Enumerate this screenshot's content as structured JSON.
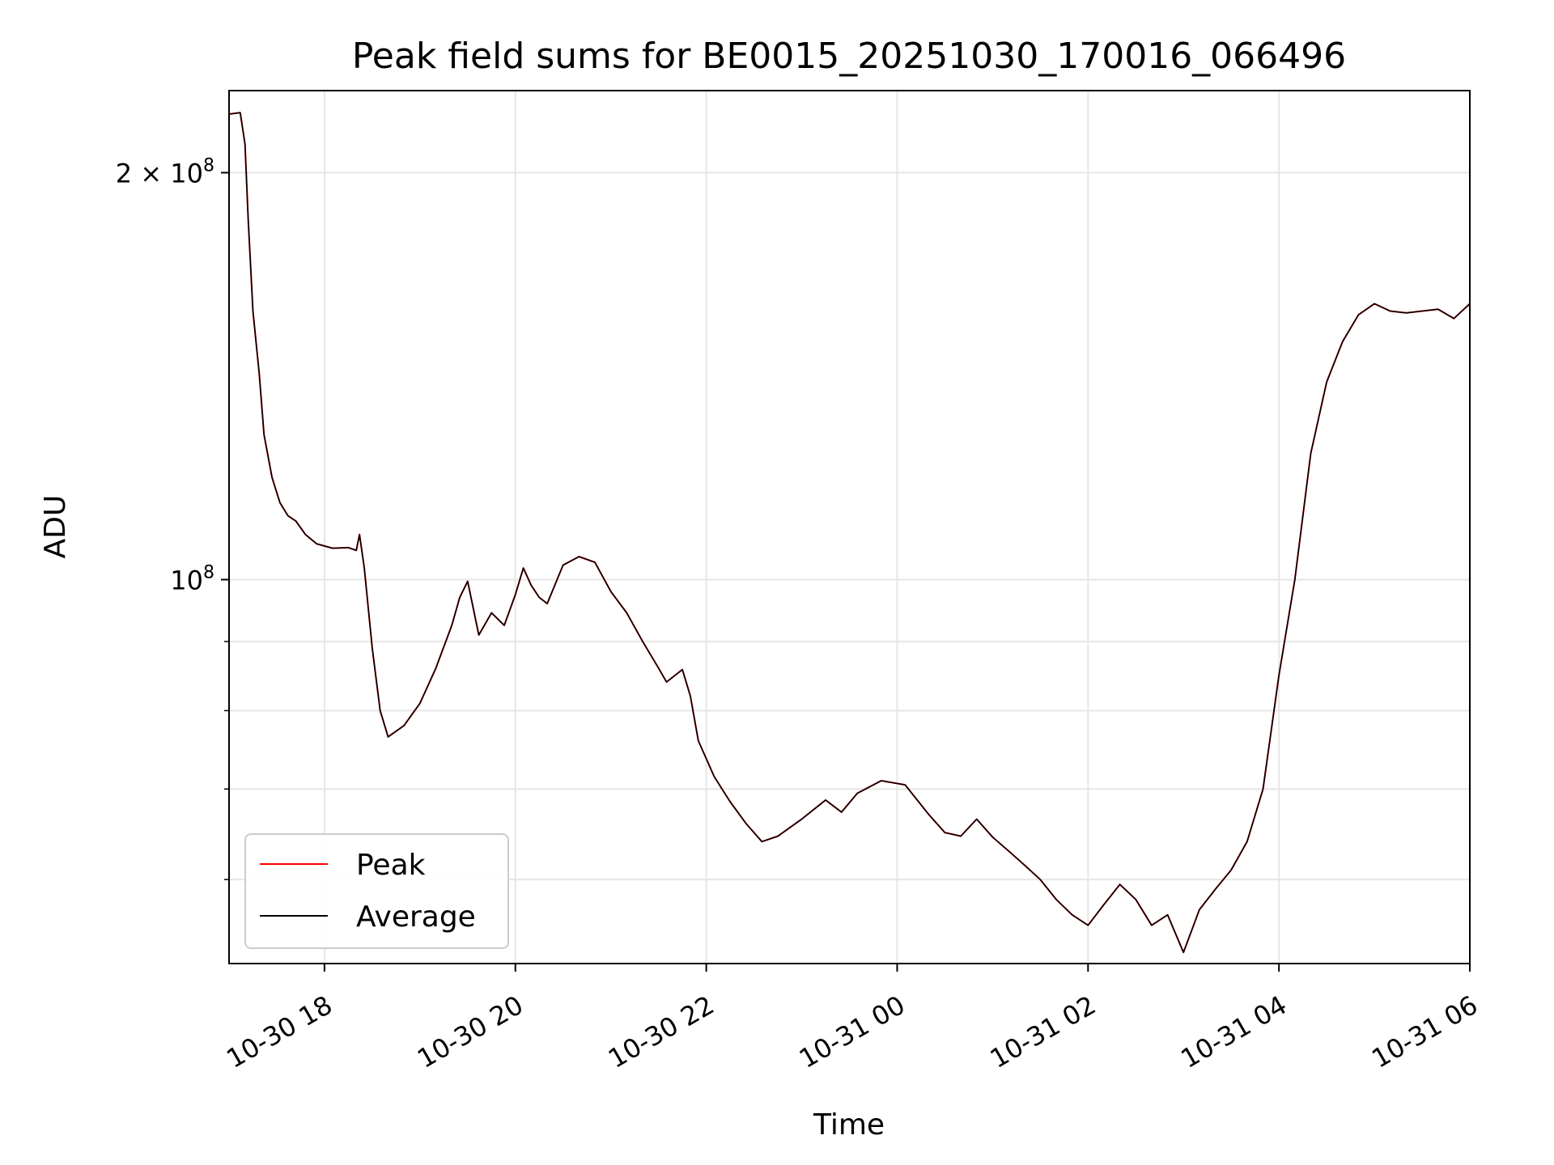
{
  "chart_data": {
    "type": "line",
    "title": "Peak field sums for BE0015_20251030_170016_066496",
    "xlabel": "Time",
    "ylabel": "ADU",
    "y_scale": "log",
    "grid": true,
    "legend_position": "lower-left",
    "xlim": [
      "2025-10-30T17:00",
      "2025-10-31T06:00"
    ],
    "ylim": [
      52000000,
      230000000
    ],
    "x_ticks": [
      {
        "t": "2025-10-30T18:00",
        "label": "10-30 18"
      },
      {
        "t": "2025-10-30T20:00",
        "label": "10-30 20"
      },
      {
        "t": "2025-10-30T22:00",
        "label": "10-30 22"
      },
      {
        "t": "2025-10-31T00:00",
        "label": "10-31 00"
      },
      {
        "t": "2025-10-31T02:00",
        "label": "10-31 02"
      },
      {
        "t": "2025-10-31T04:00",
        "label": "10-31 04"
      },
      {
        "t": "2025-10-31T06:00",
        "label": "10-31 06"
      }
    ],
    "y_major_ticks": [
      {
        "value": 100000000,
        "base": "10",
        "exp": "8"
      },
      {
        "value": 200000000,
        "base": "2 × 10",
        "exp": "8"
      }
    ],
    "y_minor_ticks": [
      60000000,
      70000000,
      80000000,
      90000000
    ],
    "series": [
      {
        "name": "Average",
        "color": "#000000",
        "points": [
          [
            "2025-10-30T17:00",
            221000000
          ],
          [
            "2025-10-30T17:07",
            221500000
          ],
          [
            "2025-10-30T17:10",
            210000000
          ],
          [
            "2025-10-30T17:12",
            185000000
          ],
          [
            "2025-10-30T17:15",
            158000000
          ],
          [
            "2025-10-30T17:19",
            142000000
          ],
          [
            "2025-10-30T17:22",
            128000000
          ],
          [
            "2025-10-30T17:27",
            119000000
          ],
          [
            "2025-10-30T17:32",
            114000000
          ],
          [
            "2025-10-30T17:37",
            111500000
          ],
          [
            "2025-10-30T17:42",
            110500000
          ],
          [
            "2025-10-30T17:48",
            108000000
          ],
          [
            "2025-10-30T17:55",
            106300000
          ],
          [
            "2025-10-30T18:05",
            105500000
          ],
          [
            "2025-10-30T18:15",
            105600000
          ],
          [
            "2025-10-30T18:20",
            105100000
          ],
          [
            "2025-10-30T18:22",
            108000000
          ],
          [
            "2025-10-30T18:25",
            102000000
          ],
          [
            "2025-10-30T18:30",
            89000000
          ],
          [
            "2025-10-30T18:35",
            80000000
          ],
          [
            "2025-10-30T18:40",
            76500000
          ],
          [
            "2025-10-30T18:50",
            78000000
          ],
          [
            "2025-10-30T19:00",
            81000000
          ],
          [
            "2025-10-30T19:10",
            86000000
          ],
          [
            "2025-10-30T19:20",
            92500000
          ],
          [
            "2025-10-30T19:25",
            97000000
          ],
          [
            "2025-10-30T19:30",
            99700000
          ],
          [
            "2025-10-30T19:37",
            91000000
          ],
          [
            "2025-10-30T19:45",
            94500000
          ],
          [
            "2025-10-30T19:53",
            92500000
          ],
          [
            "2025-10-30T20:00",
            97500000
          ],
          [
            "2025-10-30T20:05",
            102000000
          ],
          [
            "2025-10-30T20:10",
            99000000
          ],
          [
            "2025-10-30T20:15",
            97000000
          ],
          [
            "2025-10-30T20:20",
            96000000
          ],
          [
            "2025-10-30T20:30",
            102500000
          ],
          [
            "2025-10-30T20:40",
            104000000
          ],
          [
            "2025-10-30T20:50",
            103000000
          ],
          [
            "2025-10-30T21:00",
            98000000
          ],
          [
            "2025-10-30T21:10",
            94500000
          ],
          [
            "2025-10-30T21:20",
            90000000
          ],
          [
            "2025-10-30T21:30",
            86000000
          ],
          [
            "2025-10-30T21:35",
            84000000
          ],
          [
            "2025-10-30T21:45",
            85800000
          ],
          [
            "2025-10-30T21:50",
            82000000
          ],
          [
            "2025-10-30T21:55",
            76000000
          ],
          [
            "2025-10-30T22:05",
            71500000
          ],
          [
            "2025-10-30T22:15",
            68500000
          ],
          [
            "2025-10-30T22:25",
            66000000
          ],
          [
            "2025-10-30T22:35",
            64000000
          ],
          [
            "2025-10-30T22:45",
            64600000
          ],
          [
            "2025-10-30T23:00",
            66500000
          ],
          [
            "2025-10-30T23:15",
            68700000
          ],
          [
            "2025-10-30T23:25",
            67300000
          ],
          [
            "2025-10-30T23:35",
            69500000
          ],
          [
            "2025-10-30T23:50",
            71000000
          ],
          [
            "2025-10-31T00:05",
            70500000
          ],
          [
            "2025-10-31T00:20",
            67000000
          ],
          [
            "2025-10-31T00:30",
            65000000
          ],
          [
            "2025-10-31T00:40",
            64600000
          ],
          [
            "2025-10-31T00:50",
            66500000
          ],
          [
            "2025-10-31T01:00",
            64500000
          ],
          [
            "2025-10-31T01:10",
            63000000
          ],
          [
            "2025-10-31T01:20",
            61500000
          ],
          [
            "2025-10-31T01:30",
            60000000
          ],
          [
            "2025-10-31T01:40",
            58000000
          ],
          [
            "2025-10-31T01:50",
            56500000
          ],
          [
            "2025-10-31T02:00",
            55500000
          ],
          [
            "2025-10-31T02:10",
            57500000
          ],
          [
            "2025-10-31T02:20",
            59500000
          ],
          [
            "2025-10-31T02:30",
            58000000
          ],
          [
            "2025-10-31T02:40",
            55500000
          ],
          [
            "2025-10-31T02:50",
            56500000
          ],
          [
            "2025-10-31T03:00",
            53000000
          ],
          [
            "2025-10-31T03:10",
            57000000
          ],
          [
            "2025-10-31T03:20",
            59000000
          ],
          [
            "2025-10-31T03:30",
            61000000
          ],
          [
            "2025-10-31T03:40",
            64000000
          ],
          [
            "2025-10-31T03:50",
            70000000
          ],
          [
            "2025-10-31T04:00",
            85000000
          ],
          [
            "2025-10-31T04:10",
            100000000
          ],
          [
            "2025-10-31T04:20",
            124000000
          ],
          [
            "2025-10-31T04:30",
            140000000
          ],
          [
            "2025-10-31T04:40",
            150000000
          ],
          [
            "2025-10-31T04:50",
            157000000
          ],
          [
            "2025-10-31T05:00",
            160000000
          ],
          [
            "2025-10-31T05:10",
            158000000
          ],
          [
            "2025-10-31T05:20",
            157500000
          ],
          [
            "2025-10-31T05:30",
            158000000
          ],
          [
            "2025-10-31T05:40",
            158500000
          ],
          [
            "2025-10-31T05:50",
            156000000
          ],
          [
            "2025-10-31T06:00",
            160000000
          ]
        ]
      },
      {
        "name": "Peak",
        "color": "#ff0000",
        "points": [
          [
            "2025-10-30T17:00",
            221000000
          ],
          [
            "2025-10-30T17:07",
            221500000
          ],
          [
            "2025-10-30T17:10",
            210000000
          ],
          [
            "2025-10-30T17:12",
            185000000
          ],
          [
            "2025-10-30T17:15",
            158000000
          ],
          [
            "2025-10-30T17:19",
            142000000
          ],
          [
            "2025-10-30T17:22",
            128000000
          ],
          [
            "2025-10-30T17:27",
            119000000
          ],
          [
            "2025-10-30T17:32",
            114000000
          ],
          [
            "2025-10-30T17:37",
            111500000
          ],
          [
            "2025-10-30T17:42",
            110500000
          ],
          [
            "2025-10-30T17:48",
            108000000
          ],
          [
            "2025-10-30T17:55",
            106300000
          ],
          [
            "2025-10-30T18:05",
            105500000
          ],
          [
            "2025-10-30T18:15",
            105600000
          ],
          [
            "2025-10-30T18:20",
            105100000
          ],
          [
            "2025-10-30T18:22",
            108000000
          ],
          [
            "2025-10-30T18:25",
            102000000
          ],
          [
            "2025-10-30T18:30",
            89000000
          ],
          [
            "2025-10-30T18:35",
            80000000
          ],
          [
            "2025-10-30T18:40",
            76500000
          ],
          [
            "2025-10-30T18:50",
            78000000
          ],
          [
            "2025-10-30T19:00",
            81000000
          ],
          [
            "2025-10-30T19:10",
            86000000
          ],
          [
            "2025-10-30T19:20",
            92500000
          ],
          [
            "2025-10-30T19:25",
            97000000
          ],
          [
            "2025-10-30T19:30",
            99700000
          ],
          [
            "2025-10-30T19:37",
            91000000
          ],
          [
            "2025-10-30T19:45",
            94500000
          ],
          [
            "2025-10-30T19:53",
            92500000
          ],
          [
            "2025-10-30T20:00",
            97500000
          ],
          [
            "2025-10-30T20:05",
            102000000
          ],
          [
            "2025-10-30T20:10",
            99000000
          ],
          [
            "2025-10-30T20:15",
            97000000
          ],
          [
            "2025-10-30T20:20",
            96000000
          ],
          [
            "2025-10-30T20:30",
            102500000
          ],
          [
            "2025-10-30T20:40",
            104000000
          ],
          [
            "2025-10-30T20:50",
            103000000
          ],
          [
            "2025-10-30T21:00",
            98000000
          ],
          [
            "2025-10-30T21:10",
            94500000
          ],
          [
            "2025-10-30T21:20",
            90000000
          ],
          [
            "2025-10-30T21:30",
            86000000
          ],
          [
            "2025-10-30T21:35",
            84000000
          ],
          [
            "2025-10-30T21:45",
            85800000
          ],
          [
            "2025-10-30T21:50",
            82000000
          ],
          [
            "2025-10-30T21:55",
            76000000
          ],
          [
            "2025-10-30T22:05",
            71500000
          ],
          [
            "2025-10-30T22:15",
            68500000
          ],
          [
            "2025-10-30T22:25",
            66000000
          ],
          [
            "2025-10-30T22:35",
            64000000
          ],
          [
            "2025-10-30T22:45",
            64600000
          ],
          [
            "2025-10-30T23:00",
            66500000
          ],
          [
            "2025-10-30T23:15",
            68700000
          ],
          [
            "2025-10-30T23:25",
            67300000
          ],
          [
            "2025-10-30T23:35",
            69500000
          ],
          [
            "2025-10-30T23:50",
            71000000
          ],
          [
            "2025-10-31T00:05",
            70500000
          ],
          [
            "2025-10-31T00:20",
            67000000
          ],
          [
            "2025-10-31T00:30",
            65000000
          ],
          [
            "2025-10-31T00:40",
            64600000
          ],
          [
            "2025-10-31T00:50",
            66500000
          ],
          [
            "2025-10-31T01:00",
            64500000
          ],
          [
            "2025-10-31T01:10",
            63000000
          ],
          [
            "2025-10-31T01:20",
            61500000
          ],
          [
            "2025-10-31T01:30",
            60000000
          ],
          [
            "2025-10-31T01:40",
            58000000
          ],
          [
            "2025-10-31T01:50",
            56500000
          ],
          [
            "2025-10-31T02:00",
            55500000
          ],
          [
            "2025-10-31T02:10",
            57500000
          ],
          [
            "2025-10-31T02:20",
            59500000
          ],
          [
            "2025-10-31T02:30",
            58000000
          ],
          [
            "2025-10-31T02:40",
            55500000
          ],
          [
            "2025-10-31T02:50",
            56500000
          ],
          [
            "2025-10-31T03:00",
            53000000
          ],
          [
            "2025-10-31T03:10",
            57000000
          ],
          [
            "2025-10-31T03:20",
            59000000
          ],
          [
            "2025-10-31T03:30",
            61000000
          ],
          [
            "2025-10-31T03:40",
            64000000
          ],
          [
            "2025-10-31T03:50",
            70000000
          ],
          [
            "2025-10-31T04:00",
            85000000
          ],
          [
            "2025-10-31T04:10",
            100000000
          ],
          [
            "2025-10-31T04:20",
            124000000
          ],
          [
            "2025-10-31T04:30",
            140000000
          ],
          [
            "2025-10-31T04:40",
            150000000
          ],
          [
            "2025-10-31T04:50",
            157000000
          ],
          [
            "2025-10-31T05:00",
            160000000
          ],
          [
            "2025-10-31T05:10",
            158000000
          ],
          [
            "2025-10-31T05:20",
            157500000
          ],
          [
            "2025-10-31T05:30",
            158000000
          ],
          [
            "2025-10-31T05:40",
            158500000
          ],
          [
            "2025-10-31T05:50",
            156000000
          ],
          [
            "2025-10-31T06:00",
            160000000
          ]
        ]
      }
    ]
  }
}
